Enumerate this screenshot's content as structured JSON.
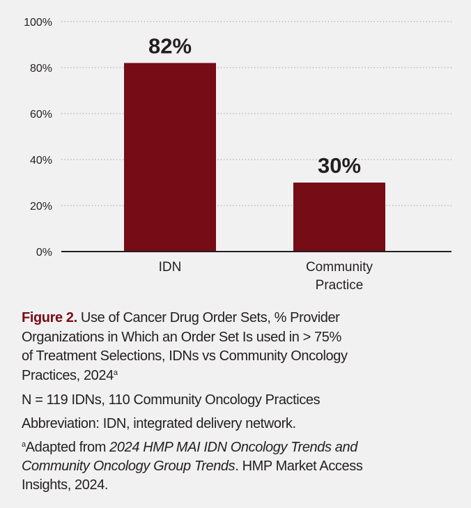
{
  "chart_data": {
    "type": "bar",
    "categories": [
      "IDN",
      "Community Practice"
    ],
    "category_lines": [
      [
        "IDN"
      ],
      [
        "Community",
        "Practice"
      ]
    ],
    "values": [
      82,
      30
    ],
    "data_labels": [
      "82%",
      "30%"
    ],
    "title": "",
    "xlabel": "",
    "ylabel": "",
    "ylim": [
      0,
      100
    ],
    "yticks": [
      0,
      20,
      40,
      60,
      80,
      100
    ],
    "ytick_labels": [
      "0%",
      "20%",
      "40%",
      "60%",
      "80%",
      "100%"
    ],
    "grid": "horizontal dotted",
    "bar_color": "#760c16"
  },
  "caption": {
    "figure_label": "Figure 2.",
    "title_lines": [
      "Use of Cancer Drug Order Sets, % Provider",
      "Organizations in Which an Order Set Is used in > 75%",
      "of Treatment Selections, IDNs vs Community Oncology",
      "Practices, 2024"
    ],
    "title_superscript": "a",
    "sample": "N = 119 IDNs, 110 Community Oncology Practices",
    "abbreviation": "Abbreviation: IDN, integrated delivery network.",
    "footnote": {
      "marker": "a",
      "prefix": "Adapted from ",
      "italic_line1": "2024 HMP MAI IDN Oncology Trends and",
      "italic_line2": "Community Oncology Group Trends",
      "suffix_line2": ". HMP Market Access",
      "line3": "Insights, 2024."
    },
    "label_color": "#7a0c16"
  }
}
